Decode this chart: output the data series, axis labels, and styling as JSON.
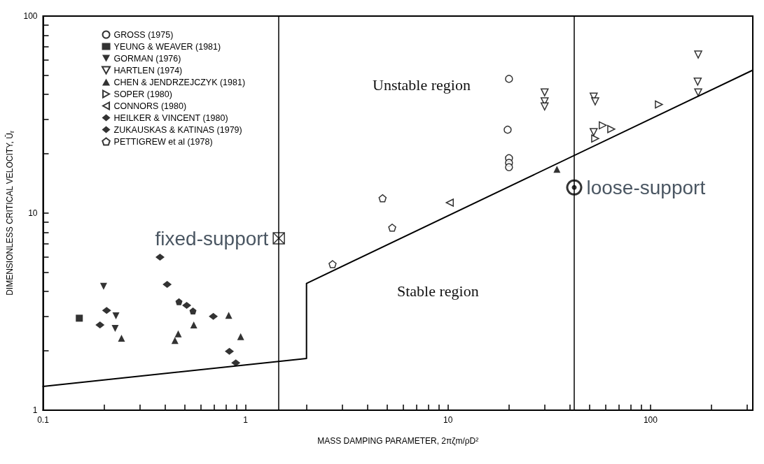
{
  "chart_data": {
    "type": "scatter",
    "xlabel": "MASS DAMPING PARAMETER, 2πζm/ρD²",
    "ylabel": "DIMENSIONLESS CRITICAL VELOCITY, Ū$_{r}$",
    "log": "xy",
    "grid": false,
    "legend": "top left",
    "xlim": [
      0.1,
      320
    ],
    "ylim": [
      1,
      100
    ],
    "xticks": [
      0.1,
      {
        "value": 0.2,
        "label": null
      },
      {
        "value": 0.3,
        "label": null
      },
      {
        "value": 0.4,
        "label": null
      },
      {
        "value": 0.5,
        "label": null
      },
      {
        "value": 0.6,
        "label": null
      },
      {
        "value": 0.7,
        "label": null
      },
      {
        "value": 0.8,
        "label": null
      },
      {
        "value": 0.9,
        "label": null
      },
      1,
      {
        "value": 2,
        "label": null
      },
      {
        "value": 3,
        "label": null
      },
      {
        "value": 4,
        "label": null
      },
      {
        "value": 5,
        "label": null
      },
      {
        "value": 6,
        "label": null
      },
      {
        "value": 7,
        "label": null
      },
      {
        "value": 8,
        "label": null
      },
      {
        "value": 9,
        "label": null
      },
      10,
      {
        "value": 20,
        "label": null
      },
      {
        "value": 30,
        "label": null
      },
      {
        "value": 40,
        "label": null
      },
      {
        "value": 50,
        "label": null
      },
      {
        "value": 60,
        "label": null
      },
      {
        "value": 70,
        "label": null
      },
      {
        "value": 80,
        "label": null
      },
      {
        "value": 90,
        "label": null
      },
      100,
      {
        "value": 200,
        "label": null
      },
      {
        "value": 300,
        "label": null
      }
    ],
    "yticks": [
      1,
      {
        "value": 2,
        "label": null
      },
      {
        "value": 3,
        "label": null
      },
      {
        "value": 4,
        "label": null
      },
      {
        "value": 5,
        "label": null
      },
      {
        "value": 6,
        "label": null
      },
      {
        "value": 7,
        "label": null
      },
      {
        "value": 8,
        "label": null
      },
      {
        "value": 9,
        "label": null
      },
      10,
      {
        "value": 20,
        "label": null
      },
      {
        "value": 30,
        "label": null
      },
      {
        "value": 40,
        "label": null
      },
      {
        "value": 50,
        "label": null
      },
      {
        "value": 60,
        "label": null
      },
      {
        "value": 70,
        "label": null
      },
      {
        "value": 80,
        "label": null
      },
      {
        "value": 90,
        "label": null
      },
      100
    ],
    "annotations": [
      "Unstable region",
      "Stable region"
    ],
    "ref_lines": [
      {
        "axis": "x",
        "value": 1.46,
        "color": "#000000"
      },
      {
        "axis": "x",
        "value": 42,
        "color": "#000000"
      }
    ],
    "series": [
      {
        "name": "GROSS (1975)",
        "color": "#000000",
        "marker": "circle-open",
        "x": [
          20,
          19.7,
          20,
          20,
          20
        ],
        "values": [
          48,
          26.5,
          19,
          18,
          17.1
        ]
      },
      {
        "name": "YEUNG & WEAVER (1981)",
        "color": "#000000",
        "marker": "square",
        "x": [
          0.151
        ],
        "values": [
          2.93
        ]
      },
      {
        "name": "GORMAN (1976)",
        "color": "#000000",
        "marker": "triangle-down",
        "x": [
          0.199,
          0.229,
          0.227
        ],
        "values": [
          4.25,
          3.01,
          2.6
        ]
      },
      {
        "name": "HARTLEN (1974)",
        "color": "#000000",
        "marker": "triangle-down-open",
        "x": [
          30,
          30,
          30,
          52.4,
          53.3,
          172,
          171,
          172,
          52.4
        ],
        "values": [
          41,
          36.9,
          34.8,
          39,
          36.9,
          63.8,
          46.5,
          41,
          25.8
        ]
      },
      {
        "name": "CHEN & JENDRZEJCZYK (1981)",
        "color": "#000000",
        "marker": "triangle",
        "x": [
          0.244,
          0.448,
          0.465,
          0.555,
          0.826,
          0.946,
          34.5
        ],
        "values": [
          2.32,
          2.26,
          2.44,
          2.71,
          3.03,
          2.36,
          16.7
        ]
      },
      {
        "name": "SOPER (1980)",
        "color": "#000000",
        "marker": "triangle-right-open",
        "x": [
          53.3,
          58.1,
          64,
          110
        ],
        "values": [
          23.9,
          27.9,
          26.7,
          35.6
        ]
      },
      {
        "name": "CONNORS (1980)",
        "color": "#000000",
        "marker": "triangle-left-open",
        "x": [
          10.2
        ],
        "values": [
          11.3
        ]
      },
      {
        "name": "HEILKER & VINCENT (1980)",
        "color": "#000000",
        "marker": "diamond",
        "x": [
          0.191,
          0.206,
          0.512,
          0.693
        ],
        "values": [
          2.71,
          3.21,
          3.4,
          2.99
        ]
      },
      {
        "name": "ZUKAUSKAS & KATINAS (1979)",
        "color": "#000000",
        "marker": "diamond",
        "x": [
          0.378,
          0.41,
          0.832,
          0.895
        ],
        "values": [
          5.98,
          4.35,
          1.99,
          1.74
        ]
      },
      {
        "name": "PETTIGREW et al (1978)",
        "color": "#000000",
        "x": [
          4.75,
          5.3,
          2.69
        ],
        "values": [
          11.9,
          8.44,
          5.51
        ]
      },
      {
        "color": "#000000",
        "x": [
          0.469,
          0.55
        ],
        "values": [
          3.55,
          3.19
        ]
      },
      {
        "name": "fixed-support",
        "color": "#000000",
        "marker": "cross",
        "x": [
          1.46
        ],
        "values": [
          7.45
        ]
      },
      {
        "name": "loose-support",
        "color": "#000000",
        "marker": "circle-dot-open",
        "x": [
          42
        ],
        "values": [
          13.5
        ]
      },
      {
        "type": "line",
        "color": "#000000",
        "marker": "none",
        "line_style": "solid",
        "x": [
          0.1,
          2,
          2,
          318
        ],
        "values": [
          1.32,
          1.83,
          4.4,
          53
        ]
      }
    ]
  }
}
